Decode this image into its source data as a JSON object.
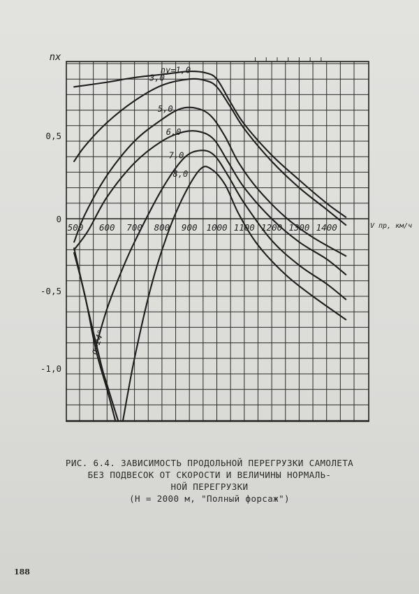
{
  "chart_data": {
    "type": "line",
    "ylabel": "nx",
    "xlabel": "V пр, км/ч",
    "x_unit": "км/ч",
    "xlim": [
      470,
      1480
    ],
    "ylim": [
      -1.3,
      1.0
    ],
    "grid": true,
    "x_ticks": [
      500,
      600,
      700,
      800,
      900,
      1000,
      1100,
      1200,
      1300,
      1400
    ],
    "y_ticks": [
      {
        "value": 0.5,
        "label": "0,5"
      },
      {
        "value": 0,
        "label": "0"
      },
      {
        "value": -0.5,
        "label": "-0,5"
      },
      {
        "value": -1.0,
        "label": "-1,0"
      }
    ],
    "series": [
      {
        "name": "ny=1,0",
        "label": "ny=1,0",
        "x": [
          480,
          600,
          700,
          800,
          900,
          960,
          1000,
          1050,
          1100,
          1200,
          1300,
          1400,
          1470
        ],
        "y": [
          0.85,
          0.88,
          0.91,
          0.93,
          0.95,
          0.94,
          0.9,
          0.75,
          0.61,
          0.41,
          0.25,
          0.1,
          0.01
        ]
      },
      {
        "name": "3,0",
        "label": "3,0",
        "x": [
          480,
          520,
          600,
          700,
          800,
          900,
          960,
          1000,
          1050,
          1100,
          1200,
          1300,
          1400,
          1470
        ],
        "y": [
          0.37,
          0.47,
          0.62,
          0.76,
          0.86,
          0.9,
          0.89,
          0.85,
          0.72,
          0.58,
          0.37,
          0.2,
          0.06,
          -0.04
        ]
      },
      {
        "name": "5,0",
        "label": "5,0",
        "x": [
          480,
          520,
          600,
          700,
          800,
          870,
          930,
          980,
          1030,
          1080,
          1150,
          1250,
          1350,
          1470
        ],
        "y": [
          -0.15,
          0.03,
          0.28,
          0.5,
          0.64,
          0.71,
          0.71,
          0.66,
          0.53,
          0.36,
          0.19,
          0.01,
          -0.12,
          -0.24
        ]
      },
      {
        "name": "6,0",
        "label": "6,0",
        "x": [
          480,
          530,
          600,
          700,
          800,
          880,
          940,
          990,
          1040,
          1100,
          1200,
          1300,
          1400,
          1470
        ],
        "y": [
          -0.2,
          -0.08,
          0.14,
          0.36,
          0.5,
          0.56,
          0.56,
          0.51,
          0.37,
          0.2,
          0.0,
          -0.15,
          -0.26,
          -0.36
        ]
      },
      {
        "name": "7,0",
        "label": "7,0",
        "x": [
          560,
          600,
          650,
          700,
          800,
          880,
          940,
          990,
          1040,
          1100,
          1200,
          1300,
          1400,
          1470
        ],
        "y": [
          -0.82,
          -0.58,
          -0.35,
          -0.15,
          0.19,
          0.39,
          0.44,
          0.41,
          0.28,
          0.1,
          -0.14,
          -0.3,
          -0.42,
          -0.52
        ]
      },
      {
        "name": "8,0",
        "label": "8,0",
        "x": [
          658,
          700,
          760,
          820,
          880,
          940,
          980,
          1030,
          1080,
          1150,
          1250,
          1350,
          1470
        ],
        "y": [
          -1.3,
          -0.9,
          -0.44,
          -0.1,
          0.15,
          0.32,
          0.32,
          0.22,
          0.03,
          -0.17,
          -0.36,
          -0.5,
          -0.65
        ]
      },
      {
        "name": "α=24°",
        "label": "α=24°",
        "x": [
          480,
          530,
          580,
          600,
          640
        ],
        "y": [
          -0.19,
          -0.58,
          -0.95,
          -1.07,
          -1.3
        ]
      },
      {
        "name": "α=24° lower",
        "x": [
          480,
          520,
          560,
          600,
          630
        ],
        "y": [
          -0.22,
          -0.5,
          -0.85,
          -1.1,
          -1.3
        ]
      }
    ],
    "label_positions": [
      {
        "series": "ny=1,0",
        "x": 905,
        "y": 0.94
      },
      {
        "series": "3,0",
        "x": 810,
        "y": 0.89
      },
      {
        "series": "5,0",
        "x": 840,
        "y": 0.69
      },
      {
        "series": "6,0",
        "x": 870,
        "y": 0.54
      },
      {
        "series": "7,0",
        "x": 880,
        "y": 0.39
      },
      {
        "series": "8,0",
        "x": 895,
        "y": 0.27
      },
      {
        "series": "α=24°",
        "x": 575,
        "y": -0.8
      }
    ]
  },
  "caption": {
    "line1": "РИС. 6.4. ЗАВИСИМОСТЬ ПРОДОЛЬНОЙ ПЕРЕГРУЗКИ САМОЛЕТА",
    "line2": "БЕЗ ПОДВЕСОК ОТ СКОРОСТИ И ВЕЛИЧИНЫ НОРМАЛЬ-",
    "line3": "НОЙ ПЕРЕГРУЗКИ",
    "line4": "(Н = 2000 м, \"Полный форсаж\")"
  },
  "page_number": "188",
  "colors": {
    "ink": "#1e1e1e",
    "grid": "#2a2a2a",
    "paper": "#dedeDB"
  }
}
